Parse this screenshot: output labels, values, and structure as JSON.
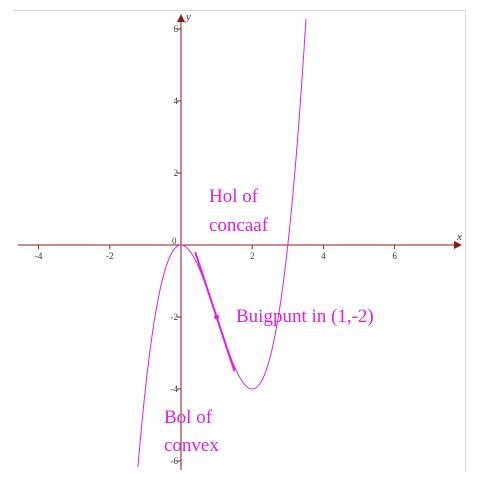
{
  "chart_data": {
    "type": "line",
    "function": "y = x^3 - 3x^2",
    "x_axis_label": "x",
    "y_axis_label": "y",
    "xlim": [
      -5,
      7.8
    ],
    "ylim": [
      -6.3,
      6.5
    ],
    "x_ticks": [
      -4,
      -2,
      2,
      4,
      6
    ],
    "y_ticks": [
      -6,
      -4,
      -2,
      2,
      4,
      6
    ],
    "origin_label": "0",
    "grid": false,
    "colors": {
      "axis": "#8b1a1a",
      "curve": "#e020e0",
      "annotation": "#e020e0"
    },
    "inflection_point": {
      "x": 1,
      "y": -2,
      "tangent_slope": -3
    },
    "annotations": [
      {
        "lines": [
          "Hol of",
          "concaaf"
        ]
      },
      {
        "lines": [
          "Buigpunt in (1,-2)"
        ]
      },
      {
        "lines": [
          "Bol of",
          "convex"
        ]
      }
    ]
  }
}
